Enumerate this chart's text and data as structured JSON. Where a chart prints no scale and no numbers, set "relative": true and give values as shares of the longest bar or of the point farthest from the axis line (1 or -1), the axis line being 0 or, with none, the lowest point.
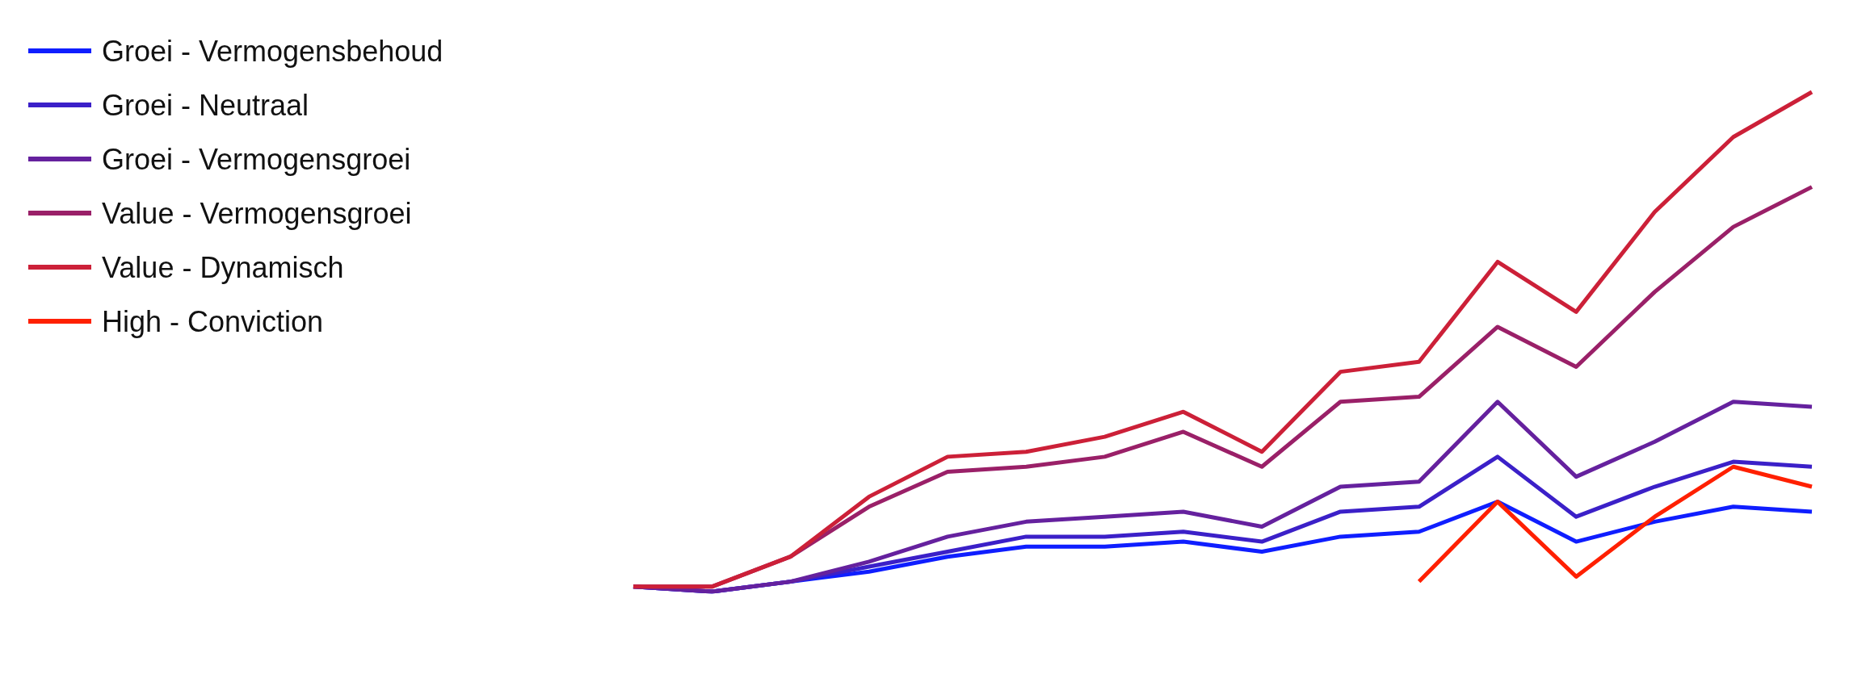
{
  "chart_data": {
    "type": "line",
    "relative": true,
    "legend": "top left",
    "marker": "none",
    "line_style": "solid",
    "categories": [
      null,
      null,
      null,
      null,
      null,
      null,
      null,
      null,
      null,
      null,
      null,
      null,
      null,
      null,
      null,
      null
    ],
    "series": [
      {
        "name": "Groei - Vermogensbehoud",
        "color": "#0f1eff",
        "values": [
          0.01,
          0,
          0.02,
          0.04,
          0.07,
          0.09,
          0.09,
          0.1,
          0.08,
          0.11,
          0.12,
          0.18,
          0.1,
          0.14,
          0.17,
          0.16
        ]
      },
      {
        "name": "Groei - Neutraal",
        "color": "#3b20c8",
        "values": [
          0.01,
          0,
          0.02,
          0.05,
          0.08,
          0.11,
          0.11,
          0.12,
          0.1,
          0.16,
          0.17,
          0.27,
          0.15,
          0.21,
          0.26,
          0.25
        ]
      },
      {
        "name": "Groei - Vermogensgroei",
        "color": "#65219e",
        "values": [
          0.01,
          0,
          0.02,
          0.06,
          0.11,
          0.14,
          0.15,
          0.16,
          0.13,
          0.21,
          0.22,
          0.38,
          0.23,
          0.3,
          0.38,
          0.37
        ]
      },
      {
        "name": "Value - Vermogensgroei",
        "color": "#9a2068",
        "values": [
          0.01,
          0.01,
          0.07,
          0.17,
          0.24,
          0.25,
          0.27,
          0.32,
          0.25,
          0.38,
          0.39,
          0.53,
          0.45,
          0.6,
          0.73,
          0.81
        ]
      },
      {
        "name": "Value - Dynamisch",
        "color": "#cc2038",
        "values": [
          0.01,
          0.01,
          0.07,
          0.19,
          0.27,
          0.28,
          0.31,
          0.36,
          0.28,
          0.44,
          0.46,
          0.66,
          0.56,
          0.76,
          0.91,
          1
        ]
      },
      {
        "name": "High - Conviction",
        "color": "#ff2000",
        "values": [
          null,
          null,
          null,
          null,
          null,
          null,
          null,
          null,
          null,
          null,
          0.02,
          0.18,
          0.03,
          0.15,
          0.25,
          0.21
        ]
      }
    ]
  }
}
